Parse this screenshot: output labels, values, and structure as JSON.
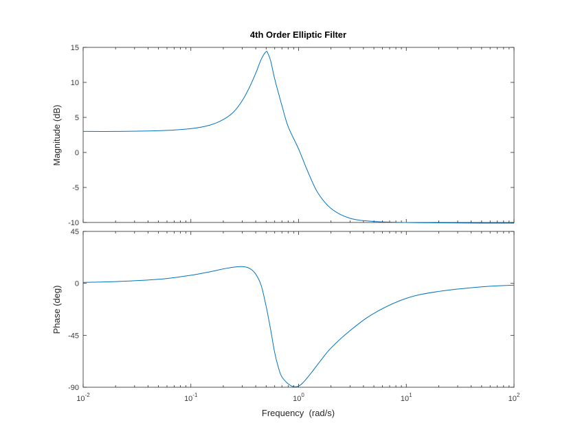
{
  "chart_data": [
    {
      "type": "line",
      "title": "4th Order Elliptic Filter",
      "xlabel": "",
      "ylabel": "Magnitude (dB)",
      "xscale": "log",
      "xlim": [
        0.01,
        100
      ],
      "ylim": [
        -10,
        15
      ],
      "yticks": [
        "15",
        "10",
        "5",
        "0",
        "-5",
        "-10"
      ],
      "grid": false,
      "color": "#0072BD",
      "x": [
        0.01,
        0.02,
        0.05,
        0.1,
        0.15,
        0.2,
        0.25,
        0.3,
        0.35,
        0.4,
        0.45,
        0.5,
        0.52,
        0.55,
        0.6,
        0.7,
        0.8,
        1.0,
        1.2,
        1.5,
        2,
        3,
        5,
        10,
        20,
        50,
        100
      ],
      "series": [
        {
          "values": [
            3.0,
            3.0,
            3.1,
            3.4,
            3.9,
            4.7,
            5.8,
            7.4,
            9.3,
            11.3,
            13.3,
            14.4,
            14.1,
            13.1,
            10.5,
            6.7,
            3.7,
            0.5,
            -2.5,
            -5.7,
            -8.0,
            -9.4,
            -9.85,
            -10.0,
            -10.05,
            -10.1,
            -10.1
          ]
        }
      ]
    },
    {
      "type": "line",
      "title": "",
      "xlabel": "Frequency  (rad/s)",
      "ylabel": "Phase (deg)",
      "xscale": "log",
      "xlim": [
        0.01,
        100
      ],
      "ylim": [
        -90,
        45
      ],
      "yticks": [
        "45",
        "0",
        "-45",
        "-90"
      ],
      "xticks": [
        {
          "base": "10",
          "exp": "-2"
        },
        {
          "base": "10",
          "exp": "-1"
        },
        {
          "base": "10",
          "exp": "0"
        },
        {
          "base": "10",
          "exp": "1"
        },
        {
          "base": "10",
          "exp": "2"
        }
      ],
      "grid": false,
      "color": "#0072BD",
      "x": [
        0.01,
        0.02,
        0.05,
        0.1,
        0.15,
        0.2,
        0.25,
        0.3,
        0.35,
        0.4,
        0.45,
        0.5,
        0.55,
        0.6,
        0.65,
        0.7,
        0.8,
        0.9,
        1.0,
        1.1,
        1.3,
        1.6,
        2,
        3,
        5,
        10,
        20,
        50,
        100
      ],
      "series": [
        {
          "values": [
            0.8,
            1.5,
            3.5,
            7,
            10,
            12.5,
            14,
            14.5,
            13,
            8,
            -2,
            -20,
            -40,
            -60,
            -73,
            -81,
            -87,
            -89.5,
            -89,
            -86,
            -78,
            -67,
            -56,
            -41,
            -26,
            -13,
            -7,
            -3,
            -1.5
          ]
        }
      ]
    }
  ]
}
